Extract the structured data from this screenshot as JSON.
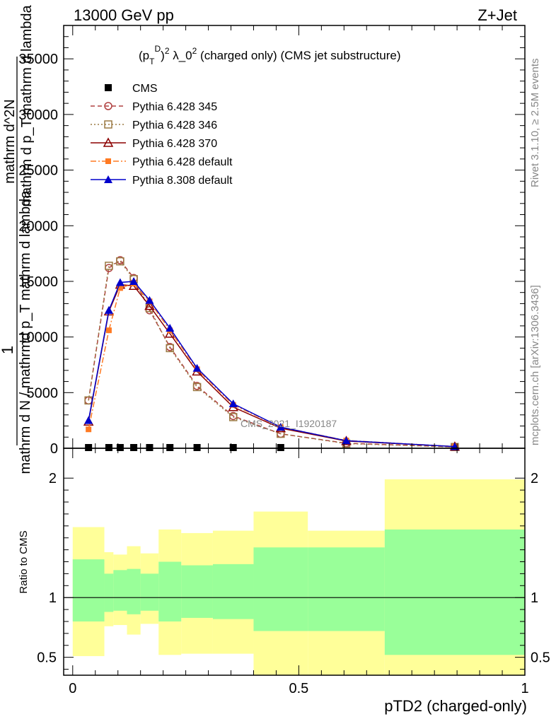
{
  "header": {
    "energy": "13000 GeV pp",
    "process": "Z+Jet"
  },
  "side_labels": {
    "rivet": "Rivet 3.1.10, ≥ 2.5M events",
    "mcplots": "mcplots.cern.ch [arXiv:1306.3436]"
  },
  "watermark": "CMS_2021_I1920187",
  "chart_data": [
    {
      "type": "line",
      "title": "(p_T^D)^2 λ_0^2 (charged only) (CMS jet substructure)",
      "ylabel_lines": [
        "1",
        "mathrm d N / mathrmd p_T mathrm d lambda",
        "mathrm d^2N",
        "mathrm d p_T mathrm d lambda"
      ],
      "ylim": [
        0,
        38000
      ],
      "yticks": [
        0,
        5000,
        10000,
        15000,
        20000,
        25000,
        30000,
        35000
      ],
      "ytick_labels": [
        "0",
        "5000",
        "10000",
        "15000",
        "20000",
        "25000",
        "30000",
        "35000"
      ],
      "x": [
        0.035,
        0.08,
        0.105,
        0.135,
        0.17,
        0.215,
        0.275,
        0.355,
        0.46,
        0.605,
        0.845
      ],
      "xlim": [
        -0.02,
        1.0
      ],
      "legend_position": "top-left",
      "series": [
        {
          "name": "CMS",
          "style": "data",
          "color": "#000000",
          "marker": "square",
          "values": [
            0,
            0,
            0,
            0,
            0,
            0,
            0,
            0,
            0,
            null,
            null
          ]
        },
        {
          "name": "Pythia 6.428 345",
          "style": "dashed",
          "color": "#b04040",
          "marker": "circle-open",
          "values": [
            4300,
            16200,
            16900,
            15300,
            12400,
            9100,
            5600,
            2900,
            1300,
            450,
            120
          ]
        },
        {
          "name": "Pythia 6.428 346",
          "style": "dotted",
          "color": "#9b7a44",
          "marker": "square-open",
          "values": [
            4300,
            16400,
            16800,
            15200,
            12600,
            9000,
            5500,
            2800,
            1300,
            420,
            110
          ]
        },
        {
          "name": "Pythia 6.428 370",
          "style": "solid",
          "color": "#8b0000",
          "marker": "triangle-open",
          "values": [
            2400,
            12300,
            14700,
            14600,
            12800,
            10300,
            6900,
            3700,
            1800,
            650,
            150
          ]
        },
        {
          "name": "Pythia 6.428 default",
          "style": "dashdot",
          "color": "#ff7a22",
          "marker": "square-filled",
          "values": [
            1700,
            10600,
            14400,
            14800,
            13200,
            10600,
            7100,
            3900,
            1900,
            700,
            160
          ]
        },
        {
          "name": "Pythia 8.308 default",
          "style": "solid",
          "color": "#0000cc",
          "marker": "triangle-filled",
          "values": [
            2500,
            12400,
            14900,
            15000,
            13300,
            10800,
            7200,
            4000,
            1900,
            680,
            150
          ]
        }
      ]
    },
    {
      "type": "area",
      "ylabel": "Ratio to CMS",
      "xlabel": "pTD2 (charged-only)",
      "ylim": [
        0.35,
        2.25
      ],
      "yticks": [
        0.5,
        1,
        2
      ],
      "ytick_labels": [
        "0.5",
        "1",
        "2"
      ],
      "xticks": [
        0,
        0.5,
        1
      ],
      "xtick_labels": [
        "0",
        "0.5",
        "1"
      ],
      "reference_line": 1,
      "bins": [
        0.0,
        0.07,
        0.09,
        0.12,
        0.15,
        0.19,
        0.24,
        0.31,
        0.4,
        0.52,
        0.69,
        1.0
      ],
      "band_total": {
        "color": "#ffff99",
        "lo": [
          0.51,
          0.76,
          0.77,
          0.69,
          0.78,
          0.52,
          0.53,
          0.53,
          0.35,
          0.35,
          0.35
        ],
        "hi": [
          1.59,
          1.38,
          1.36,
          1.43,
          1.37,
          1.57,
          1.54,
          1.56,
          1.72,
          1.56,
          1.99
        ]
      },
      "band_stat": {
        "color": "#99ff99",
        "lo": [
          0.8,
          0.88,
          0.89,
          0.86,
          0.89,
          0.8,
          0.83,
          0.82,
          0.72,
          0.72,
          0.52
        ],
        "hi": [
          1.32,
          1.2,
          1.23,
          1.24,
          1.2,
          1.3,
          1.27,
          1.28,
          1.42,
          1.42,
          1.57
        ]
      }
    }
  ]
}
